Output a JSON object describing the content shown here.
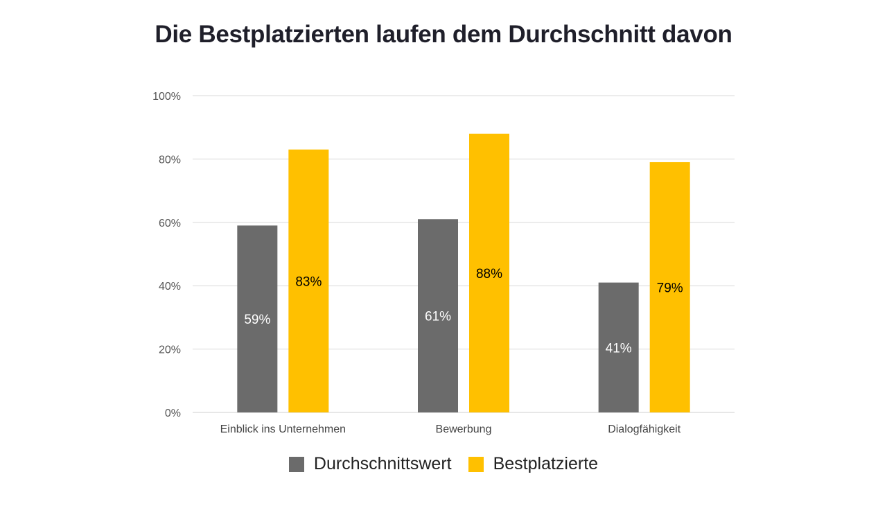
{
  "chart_data": {
    "type": "bar",
    "title": "Die Bestplatzierten laufen dem Durchschnitt davon",
    "categories": [
      "Einblick ins Unternehmen",
      "Bewerbung",
      "Dialogfähigkeit"
    ],
    "series": [
      {
        "name": "Durchschnittswert",
        "color": "#6b6b6b",
        "values": [
          59,
          61,
          41
        ],
        "labels": [
          "59%",
          "61%",
          "41%"
        ],
        "label_color": "#ffffff"
      },
      {
        "name": "Bestplatzierte",
        "color": "#ffc000",
        "values": [
          83,
          88,
          79
        ],
        "labels": [
          "83%",
          "88%",
          "79%"
        ],
        "label_color": "#000000"
      }
    ],
    "ylim": [
      0,
      100
    ],
    "yticks": [
      0,
      20,
      40,
      60,
      80,
      100
    ],
    "ytick_labels": [
      "0%",
      "20%",
      "40%",
      "60%",
      "80%",
      "100%"
    ],
    "grid": true,
    "legend_position": "bottom"
  }
}
